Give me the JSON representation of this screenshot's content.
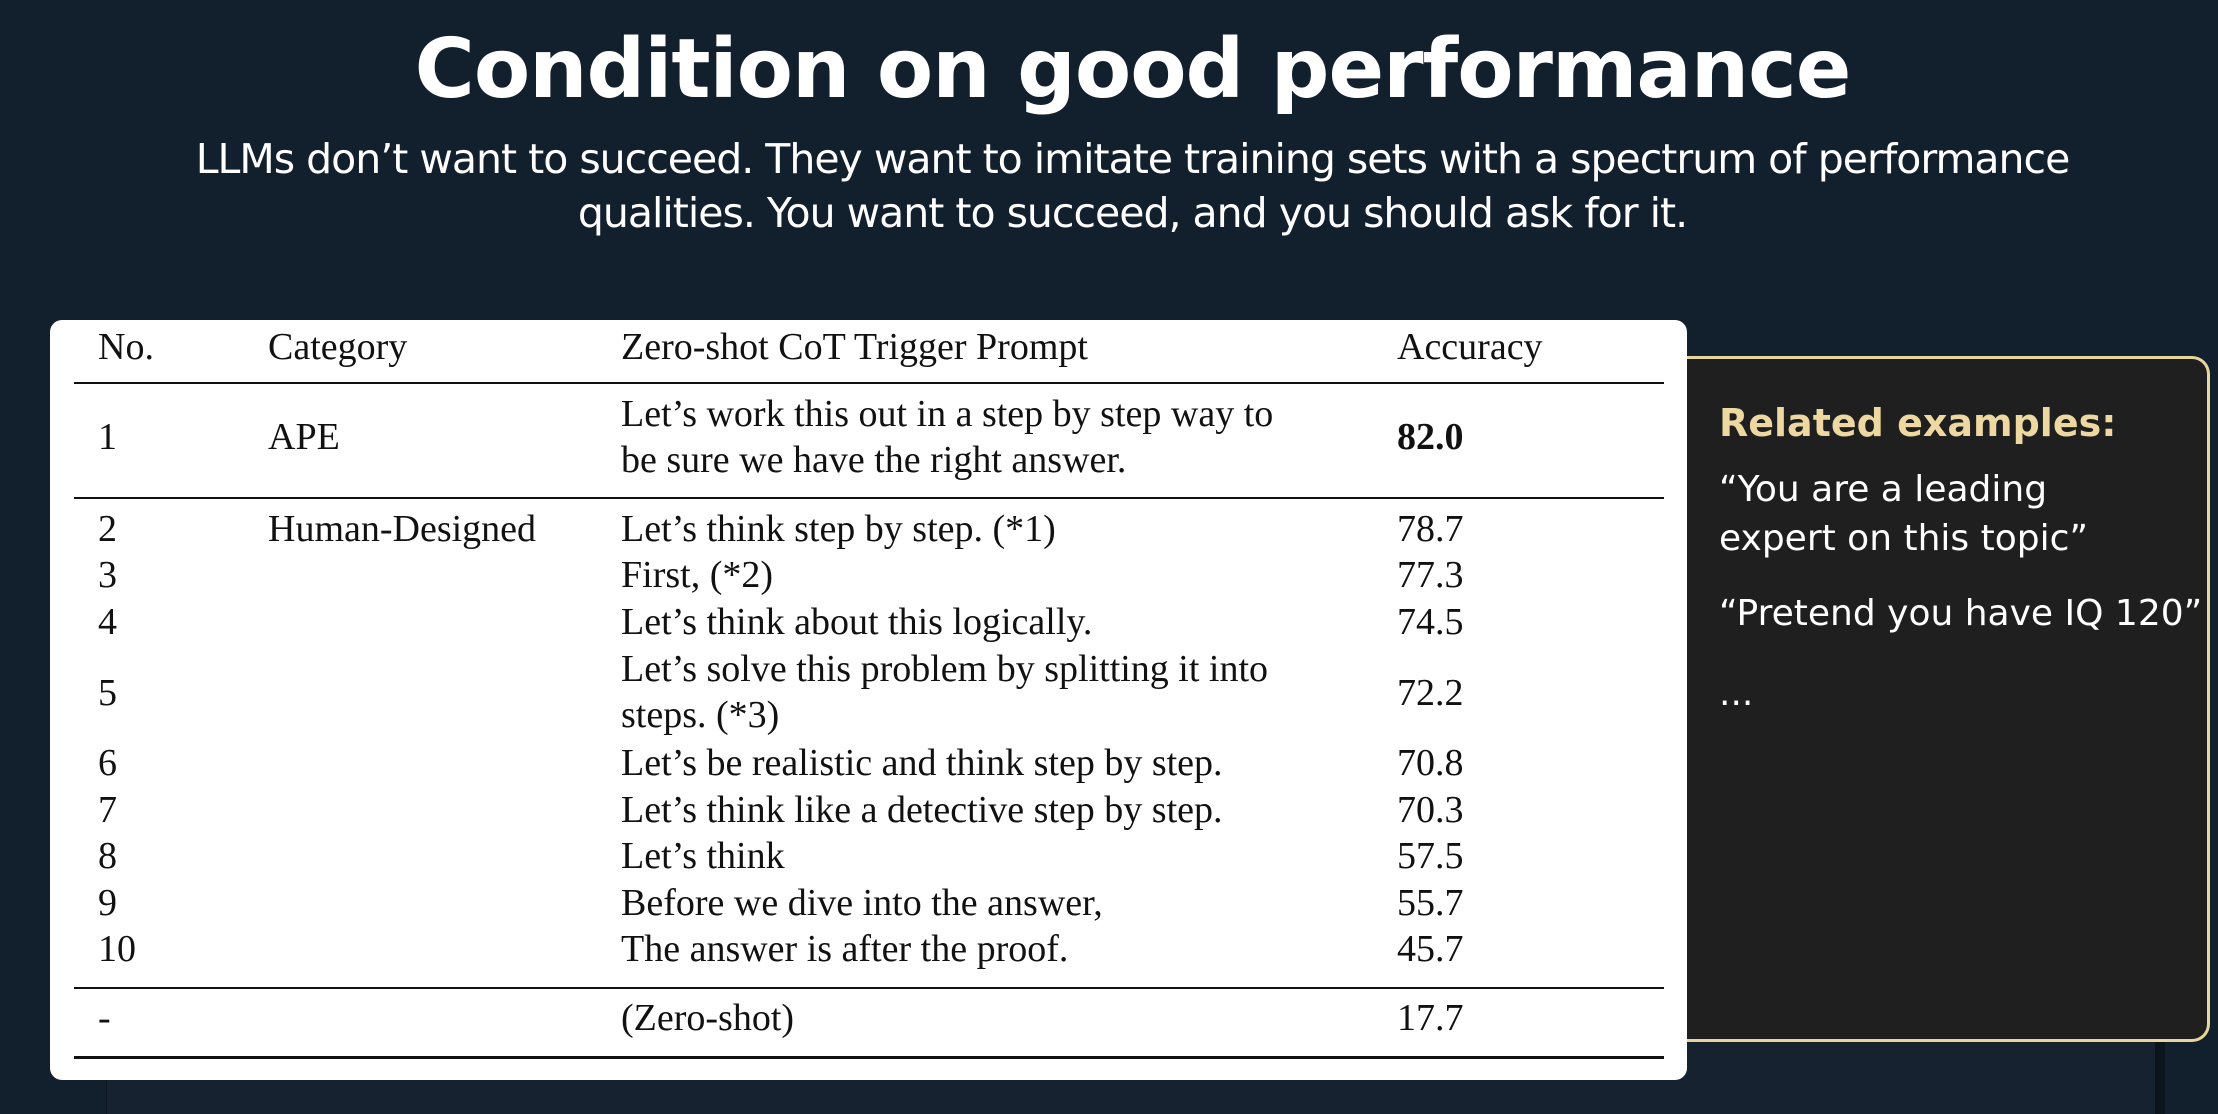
{
  "slide": {
    "title": "Condition on good performance",
    "subtitle_line1": "LLMs don’t want to succeed. They want to imitate training sets with a spectrum of performance",
    "subtitle_line2": "qualities. You want to succeed, and you should ask for it."
  },
  "table": {
    "headers": {
      "no": "No.",
      "category": "Category",
      "prompt": "Zero-shot CoT Trigger Prompt",
      "accuracy": "Accuracy"
    },
    "rows": [
      {
        "no": "1",
        "category": "APE",
        "prompt_lines": [
          "Let’s work this out in a step by step way to",
          "be sure we have the right answer."
        ],
        "accuracy": "82.0"
      },
      {
        "no": "2",
        "category": "Human-Designed",
        "prompt_lines": [
          "Let’s think step by step. (*1)"
        ],
        "accuracy": "78.7"
      },
      {
        "no": "3",
        "category": "",
        "prompt_lines": [
          "First, (*2)"
        ],
        "accuracy": "77.3"
      },
      {
        "no": "4",
        "category": "",
        "prompt_lines": [
          "Let’s think about this logically."
        ],
        "accuracy": "74.5"
      },
      {
        "no": "5",
        "category": "",
        "prompt_lines": [
          "Let’s solve this problem by splitting it into",
          "steps. (*3)"
        ],
        "accuracy": "72.2"
      },
      {
        "no": "6",
        "category": "",
        "prompt_lines": [
          "Let’s be realistic and think step by step."
        ],
        "accuracy": "70.8"
      },
      {
        "no": "7",
        "category": "",
        "prompt_lines": [
          "Let’s think like a detective step by step."
        ],
        "accuracy": "70.3"
      },
      {
        "no": "8",
        "category": "",
        "prompt_lines": [
          "Let’s think"
        ],
        "accuracy": "57.5"
      },
      {
        "no": "9",
        "category": "",
        "prompt_lines": [
          "Before we dive into the answer,"
        ],
        "accuracy": "55.7"
      },
      {
        "no": "10",
        "category": "",
        "prompt_lines": [
          "The answer is after the proof."
        ],
        "accuracy": "45.7"
      },
      {
        "no": "-",
        "category": "",
        "prompt_lines": [
          "(Zero-shot)"
        ],
        "accuracy": "17.7"
      }
    ]
  },
  "related": {
    "title": "Related examples:",
    "example1": "“You are a leading\nexpert on this topic”",
    "example2": "“Pretend you have IQ 120”",
    "ellipsis": "..."
  },
  "colors": {
    "background": "#121f2d",
    "accent_gold": "#ecd8a0",
    "side_card": "#1f1f1f"
  }
}
